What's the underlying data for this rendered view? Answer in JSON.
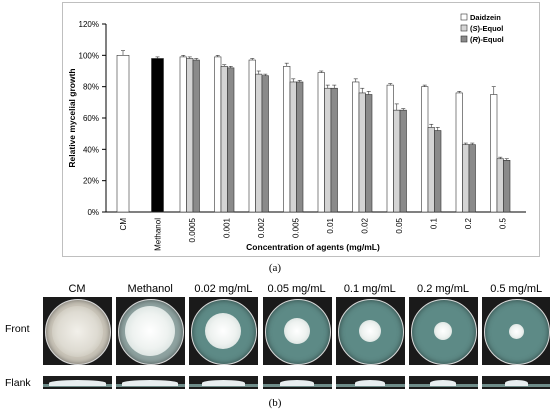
{
  "chart_data": {
    "type": "bar",
    "categories": [
      "CM",
      "Methanol",
      "0.0005",
      "0.001",
      "0.002",
      "0.005",
      "0.01",
      "0.02",
      "0.05",
      "0.1",
      "0.2",
      "0.5"
    ],
    "series": [
      {
        "name": "Daidzein",
        "color": "#ffffff",
        "values": [
          null,
          null,
          99,
          99,
          97,
          93,
          89,
          83,
          81,
          80,
          76,
          75
        ],
        "errors": [
          null,
          null,
          1,
          1,
          1,
          2,
          1,
          2,
          1,
          1,
          1,
          5
        ]
      },
      {
        "name": "(S)-Equol",
        "color": "#d4d4d4",
        "values": [
          null,
          null,
          98,
          93,
          88,
          83,
          79,
          76,
          65,
          54,
          43,
          34
        ],
        "errors": [
          null,
          null,
          1,
          1,
          2,
          2,
          2,
          3,
          4,
          2,
          1,
          1
        ]
      },
      {
        "name": "(R)-Equol",
        "color": "#8a8a8a",
        "values": [
          null,
          null,
          97,
          92,
          87,
          83,
          79,
          75,
          65,
          52,
          43,
          33
        ],
        "errors": [
          null,
          null,
          1,
          1,
          1,
          1,
          2,
          2,
          1,
          2,
          1,
          1
        ]
      }
    ],
    "controls": [
      {
        "category": "CM",
        "value": 100,
        "error": 3,
        "color": "#ffffff"
      },
      {
        "category": "Methanol",
        "value": 98,
        "error": 1,
        "color": "#000000"
      }
    ],
    "legend_labels": [
      {
        "pre": "",
        "mid": "Daidzein",
        "post": ""
      },
      {
        "pre": "(",
        "mid": "S",
        "post": ")-Equol"
      },
      {
        "pre": "(",
        "mid": "R",
        "post": ")-Equol"
      }
    ],
    "ylim": [
      0,
      120
    ],
    "yticks": [
      "0%",
      "20%",
      "40%",
      "60%",
      "80%",
      "100%",
      "120%"
    ],
    "ylabel": "Relative mycelial growth",
    "xlabel": "Concentration of agents (mg/mL)",
    "legend_position": "top-right",
    "grid": false
  },
  "figure": {
    "panel_a_label": "(a)",
    "panel_b_label": "(b)",
    "column_titles": [
      "CM",
      "Methanol",
      "0.02 mg/mL",
      "0.05 mg/mL",
      "0.1 mg/mL",
      "0.2 mg/mL",
      "0.5 mg/mL"
    ],
    "row_labels": {
      "front": "Front",
      "flank": "Flank"
    },
    "plates": [
      {
        "type": "cm",
        "colony_fraction": 0.78
      },
      {
        "type": "methanol",
        "colony_fraction": 0.76
      },
      {
        "type": "agar",
        "colony_fraction": 0.55
      },
      {
        "type": "agar",
        "colony_fraction": 0.4
      },
      {
        "type": "agar",
        "colony_fraction": 0.33
      },
      {
        "type": "agar",
        "colony_fraction": 0.27
      },
      {
        "type": "agar",
        "colony_fraction": 0.22
      }
    ]
  }
}
